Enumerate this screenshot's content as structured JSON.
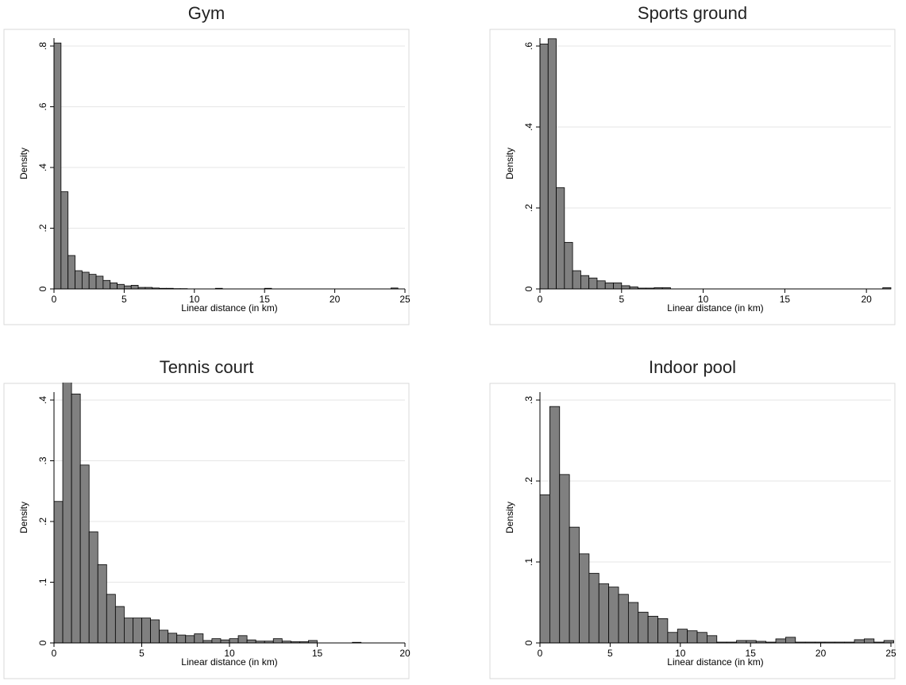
{
  "chart_data": [
    {
      "type": "bar",
      "title": "Gym",
      "xlabel": "Linear distance (in km)",
      "ylabel": "Density",
      "xlim": [
        0,
        25
      ],
      "ylim": [
        0,
        0.8
      ],
      "xticks": [
        0,
        5,
        10,
        15,
        20,
        25
      ],
      "xtick_labels": [
        "0",
        "5",
        "10",
        "15",
        "20",
        "25"
      ],
      "yticks": [
        0,
        0.2,
        0.4,
        0.6,
        0.8
      ],
      "ytick_labels": [
        "0",
        ".2",
        ".4",
        ".6",
        ".8"
      ],
      "bin_width": 0.5,
      "bins": [
        {
          "x": 0,
          "y": 0.81
        },
        {
          "x": 0.5,
          "y": 0.32
        },
        {
          "x": 1,
          "y": 0.11
        },
        {
          "x": 1.5,
          "y": 0.06
        },
        {
          "x": 2,
          "y": 0.055
        },
        {
          "x": 2.5,
          "y": 0.048
        },
        {
          "x": 3,
          "y": 0.042
        },
        {
          "x": 3.5,
          "y": 0.028
        },
        {
          "x": 4,
          "y": 0.02
        },
        {
          "x": 4.5,
          "y": 0.015
        },
        {
          "x": 5,
          "y": 0.01
        },
        {
          "x": 5.5,
          "y": 0.012
        },
        {
          "x": 6,
          "y": 0.005
        },
        {
          "x": 6.5,
          "y": 0.005
        },
        {
          "x": 7,
          "y": 0.003
        },
        {
          "x": 7.5,
          "y": 0.002
        },
        {
          "x": 8,
          "y": 0.002
        },
        {
          "x": 8.5,
          "y": 0.001
        },
        {
          "x": 9,
          "y": 0.001
        },
        {
          "x": 11.5,
          "y": 0.002
        },
        {
          "x": 15,
          "y": 0.002
        },
        {
          "x": 24,
          "y": 0.003
        }
      ]
    },
    {
      "type": "bar",
      "title": "Sports ground",
      "xlabel": "Linear distance (in km)",
      "ylabel": "Density",
      "xlim": [
        0,
        21.5
      ],
      "ylim": [
        0,
        0.6
      ],
      "xticks": [
        0,
        5,
        10,
        15,
        20
      ],
      "xtick_labels": [
        "0",
        "5",
        "10",
        "15",
        "20"
      ],
      "yticks": [
        0,
        0.2,
        0.4,
        0.6
      ],
      "ytick_labels": [
        "0",
        ".2",
        ".4",
        ".6"
      ],
      "bin_width": 0.5,
      "bins": [
        {
          "x": 0,
          "y": 0.605
        },
        {
          "x": 0.5,
          "y": 0.618
        },
        {
          "x": 1,
          "y": 0.25
        },
        {
          "x": 1.5,
          "y": 0.115
        },
        {
          "x": 2,
          "y": 0.045
        },
        {
          "x": 2.5,
          "y": 0.033
        },
        {
          "x": 3,
          "y": 0.027
        },
        {
          "x": 3.5,
          "y": 0.02
        },
        {
          "x": 4,
          "y": 0.015
        },
        {
          "x": 4.5,
          "y": 0.015
        },
        {
          "x": 5,
          "y": 0.008
        },
        {
          "x": 5.5,
          "y": 0.005
        },
        {
          "x": 6,
          "y": 0.002
        },
        {
          "x": 6.5,
          "y": 0.002
        },
        {
          "x": 7,
          "y": 0.003
        },
        {
          "x": 7.5,
          "y": 0.003
        },
        {
          "x": 21,
          "y": 0.003
        }
      ]
    },
    {
      "type": "bar",
      "title": "Tennis court",
      "xlabel": "Linear distance (in km)",
      "ylabel": "Density",
      "xlim": [
        0,
        20
      ],
      "ylim": [
        0,
        0.4
      ],
      "xticks": [
        0,
        5,
        10,
        15,
        20
      ],
      "xtick_labels": [
        "0",
        "5",
        "10",
        "15",
        "20"
      ],
      "yticks": [
        0,
        0.1,
        0.2,
        0.3,
        0.4
      ],
      "ytick_labels": [
        "0",
        ".1",
        ".2",
        ".3",
        ".4"
      ],
      "bin_width": 0.5,
      "bins": [
        {
          "x": 0,
          "y": 0.233
        },
        {
          "x": 0.5,
          "y": 0.435
        },
        {
          "x": 1,
          "y": 0.41
        },
        {
          "x": 1.5,
          "y": 0.293
        },
        {
          "x": 2,
          "y": 0.183
        },
        {
          "x": 2.5,
          "y": 0.129
        },
        {
          "x": 3,
          "y": 0.08
        },
        {
          "x": 3.5,
          "y": 0.06
        },
        {
          "x": 4,
          "y": 0.041
        },
        {
          "x": 4.5,
          "y": 0.041
        },
        {
          "x": 5,
          "y": 0.041
        },
        {
          "x": 5.5,
          "y": 0.038
        },
        {
          "x": 6,
          "y": 0.021
        },
        {
          "x": 6.5,
          "y": 0.016
        },
        {
          "x": 7,
          "y": 0.013
        },
        {
          "x": 7.5,
          "y": 0.012
        },
        {
          "x": 8,
          "y": 0.015
        },
        {
          "x": 8.5,
          "y": 0.004
        },
        {
          "x": 9,
          "y": 0.007
        },
        {
          "x": 9.5,
          "y": 0.005
        },
        {
          "x": 10,
          "y": 0.007
        },
        {
          "x": 10.5,
          "y": 0.012
        },
        {
          "x": 11,
          "y": 0.005
        },
        {
          "x": 11.5,
          "y": 0.003
        },
        {
          "x": 12,
          "y": 0.003
        },
        {
          "x": 12.5,
          "y": 0.007
        },
        {
          "x": 13,
          "y": 0.003
        },
        {
          "x": 13.5,
          "y": 0.002
        },
        {
          "x": 14,
          "y": 0.002
        },
        {
          "x": 14.5,
          "y": 0.004
        },
        {
          "x": 17,
          "y": 0.001
        }
      ]
    },
    {
      "type": "bar",
      "title": "Indoor pool",
      "xlabel": "Linear distance (in km)",
      "ylabel": "Density",
      "xlim": [
        0,
        25
      ],
      "ylim": [
        0,
        0.3
      ],
      "xticks": [
        0,
        5,
        10,
        15,
        20,
        25
      ],
      "xtick_labels": [
        "0",
        "5",
        "10",
        "15",
        "20",
        "25"
      ],
      "yticks": [
        0,
        0.1,
        0.2,
        0.3
      ],
      "ytick_labels": [
        "0",
        ".1",
        ".2",
        ".3"
      ],
      "bin_width": 0.7,
      "bins": [
        {
          "x": 0,
          "y": 0.183
        },
        {
          "x": 0.7,
          "y": 0.292
        },
        {
          "x": 1.4,
          "y": 0.208
        },
        {
          "x": 2.1,
          "y": 0.143
        },
        {
          "x": 2.8,
          "y": 0.11
        },
        {
          "x": 3.5,
          "y": 0.086
        },
        {
          "x": 4.2,
          "y": 0.073
        },
        {
          "x": 4.9,
          "y": 0.069
        },
        {
          "x": 5.6,
          "y": 0.06
        },
        {
          "x": 6.3,
          "y": 0.05
        },
        {
          "x": 7.0,
          "y": 0.038
        },
        {
          "x": 7.7,
          "y": 0.033
        },
        {
          "x": 8.4,
          "y": 0.03
        },
        {
          "x": 9.1,
          "y": 0.013
        },
        {
          "x": 9.8,
          "y": 0.017
        },
        {
          "x": 10.5,
          "y": 0.015
        },
        {
          "x": 11.2,
          "y": 0.013
        },
        {
          "x": 11.9,
          "y": 0.009
        },
        {
          "x": 12.6,
          "y": 0.001
        },
        {
          "x": 13.3,
          "y": 0.001
        },
        {
          "x": 14.0,
          "y": 0.003
        },
        {
          "x": 14.7,
          "y": 0.003
        },
        {
          "x": 15.4,
          "y": 0.002
        },
        {
          "x": 16.1,
          "y": 0.001
        },
        {
          "x": 16.8,
          "y": 0.005
        },
        {
          "x": 17.5,
          "y": 0.007
        },
        {
          "x": 18.2,
          "y": 0.001
        },
        {
          "x": 18.9,
          "y": 0.001
        },
        {
          "x": 19.6,
          "y": 0.001
        },
        {
          "x": 20.3,
          "y": 0.001
        },
        {
          "x": 21.0,
          "y": 0.001
        },
        {
          "x": 21.7,
          "y": 0.001
        },
        {
          "x": 22.4,
          "y": 0.004
        },
        {
          "x": 23.1,
          "y": 0.005
        },
        {
          "x": 23.8,
          "y": 0.001
        },
        {
          "x": 24.5,
          "y": 0.003
        }
      ]
    }
  ],
  "style": {
    "bar_fill": "#808080",
    "bar_stroke": "#000000",
    "grid_color": "#e6e6e6",
    "frame_color": "#d9d9d9"
  }
}
